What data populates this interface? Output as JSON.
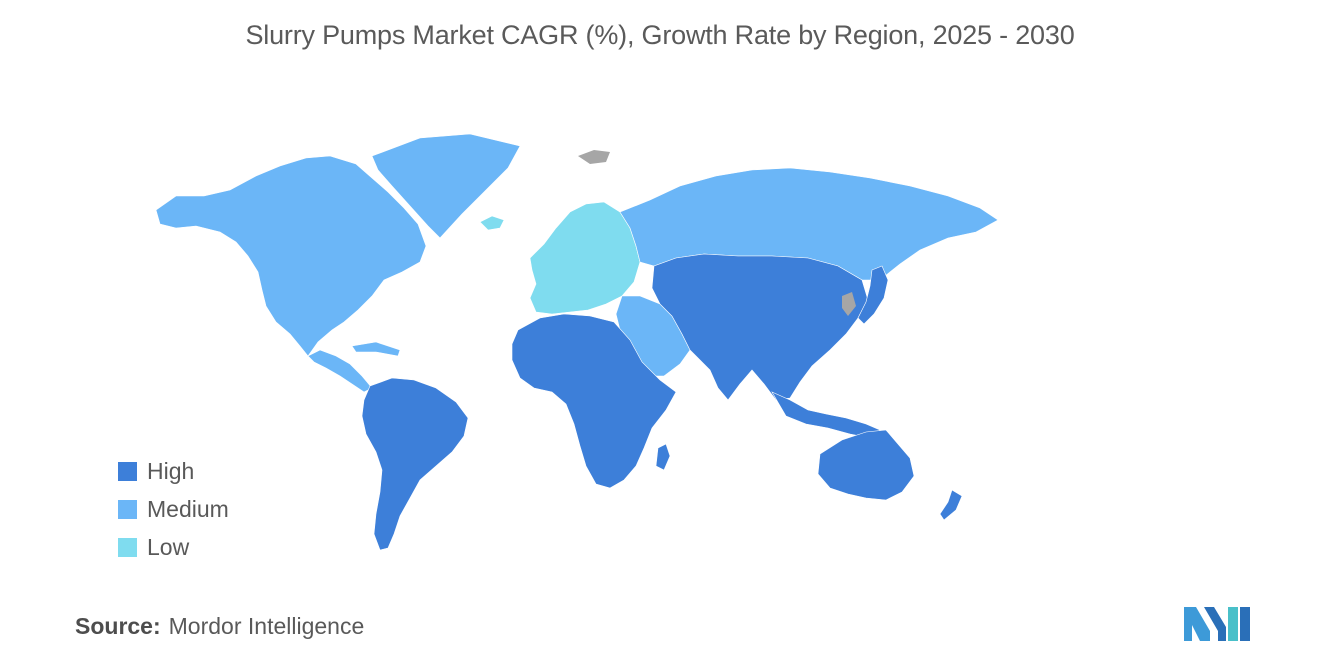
{
  "title": "Slurry Pumps Market CAGR (%), Growth Rate by Region, 2025 - 2030",
  "legend": {
    "items": [
      {
        "label": "High",
        "color": "#3d7fd9"
      },
      {
        "label": "Medium",
        "color": "#6bb6f7"
      },
      {
        "label": "Low",
        "color": "#7fdcef"
      }
    ]
  },
  "no_data_color": "#a6a6a6",
  "regions": [
    {
      "name": "North America",
      "category": "Medium"
    },
    {
      "name": "Greenland",
      "category": "Medium"
    },
    {
      "name": "Russia",
      "category": "Medium"
    },
    {
      "name": "Middle East",
      "category": "Medium"
    },
    {
      "name": "Europe",
      "category": "Low"
    },
    {
      "name": "Latin America",
      "category": "High"
    },
    {
      "name": "Africa",
      "category": "High"
    },
    {
      "name": "Asia-Pacific",
      "category": "High"
    },
    {
      "name": "Australia",
      "category": "High"
    }
  ],
  "source": {
    "label": "Source:",
    "value": "Mordor Intelligence"
  },
  "logo": {
    "icon": "mordor-intelligence-logo"
  }
}
